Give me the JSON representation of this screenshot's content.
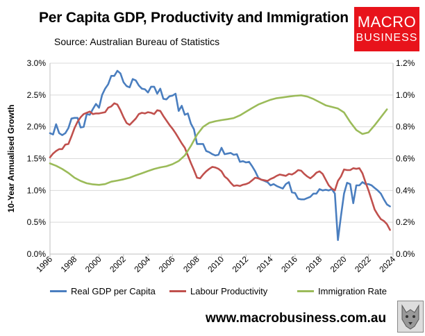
{
  "header": {
    "title": "Per Capita GDP, Productivity and Immigration",
    "subtitle": "Source: Australian Bureau of Statistics"
  },
  "logo": {
    "line1": "MACRO",
    "line2": "BUSINESS"
  },
  "footer": {
    "url": "www.macrobusiness.com.au"
  },
  "chart_data": {
    "type": "line",
    "title": "Per Capita GDP, Productivity and Immigration",
    "ylabel": "10-Year Annualised Growth",
    "xlim": [
      1996,
      2024
    ],
    "ylim_left": [
      0,
      3.0
    ],
    "ylim_right": [
      0,
      1.2
    ],
    "x_ticks": [
      "1996",
      "1998",
      "2000",
      "2002",
      "2004",
      "2006",
      "2008",
      "2010",
      "2012",
      "2014",
      "2016",
      "2018",
      "2020",
      "2022",
      "2024"
    ],
    "y_ticks_left": [
      "0.0%",
      "0.5%",
      "1.0%",
      "1.5%",
      "2.0%",
      "2.5%",
      "3.0%"
    ],
    "y_ticks_right": [
      "0.0%",
      "0.2%",
      "0.4%",
      "0.6%",
      "0.8%",
      "1.0%",
      "1.2%"
    ],
    "grid": true,
    "legend_position": "bottom",
    "series": [
      {
        "name": "Real GDP per Capita",
        "axis": "left",
        "color": "#4a7ebf",
        "points": [
          [
            1996,
            1.9
          ],
          [
            1996.25,
            1.88
          ],
          [
            1996.5,
            2.04
          ],
          [
            1996.75,
            1.9
          ],
          [
            1997,
            1.87
          ],
          [
            1997.25,
            1.9
          ],
          [
            1997.5,
            1.98
          ],
          [
            1997.75,
            2.13
          ],
          [
            1998,
            2.14
          ],
          [
            1998.25,
            2.14
          ],
          [
            1998.5,
            1.99
          ],
          [
            1998.75,
            2.0
          ],
          [
            1999,
            2.2
          ],
          [
            1999.25,
            2.19
          ],
          [
            1999.5,
            2.28
          ],
          [
            1999.75,
            2.36
          ],
          [
            2000,
            2.3
          ],
          [
            2000.25,
            2.5
          ],
          [
            2000.5,
            2.6
          ],
          [
            2000.75,
            2.67
          ],
          [
            2001,
            2.8
          ],
          [
            2001.25,
            2.8
          ],
          [
            2001.5,
            2.88
          ],
          [
            2001.75,
            2.84
          ],
          [
            2002,
            2.7
          ],
          [
            2002.25,
            2.64
          ],
          [
            2002.5,
            2.62
          ],
          [
            2002.75,
            2.75
          ],
          [
            2003,
            2.73
          ],
          [
            2003.25,
            2.65
          ],
          [
            2003.5,
            2.6
          ],
          [
            2003.75,
            2.59
          ],
          [
            2004,
            2.54
          ],
          [
            2004.25,
            2.63
          ],
          [
            2004.5,
            2.63
          ],
          [
            2004.75,
            2.52
          ],
          [
            2005,
            2.6
          ],
          [
            2005.25,
            2.44
          ],
          [
            2005.5,
            2.43
          ],
          [
            2005.75,
            2.48
          ],
          [
            2006,
            2.49
          ],
          [
            2006.25,
            2.52
          ],
          [
            2006.5,
            2.25
          ],
          [
            2006.75,
            2.33
          ],
          [
            2007,
            2.19
          ],
          [
            2007.25,
            2.21
          ],
          [
            2007.5,
            2.05
          ],
          [
            2007.75,
            1.96
          ],
          [
            2008,
            1.73
          ],
          [
            2008.25,
            1.73
          ],
          [
            2008.5,
            1.73
          ],
          [
            2008.75,
            1.62
          ],
          [
            2009,
            1.6
          ],
          [
            2009.25,
            1.57
          ],
          [
            2009.5,
            1.55
          ],
          [
            2009.75,
            1.56
          ],
          [
            2010,
            1.67
          ],
          [
            2010.25,
            1.57
          ],
          [
            2010.5,
            1.58
          ],
          [
            2010.75,
            1.59
          ],
          [
            2011,
            1.56
          ],
          [
            2011.25,
            1.57
          ],
          [
            2011.5,
            1.45
          ],
          [
            2011.75,
            1.46
          ],
          [
            2012,
            1.44
          ],
          [
            2012.25,
            1.45
          ],
          [
            2012.5,
            1.38
          ],
          [
            2012.75,
            1.3
          ],
          [
            2013,
            1.2
          ],
          [
            2013.25,
            1.17
          ],
          [
            2013.5,
            1.15
          ],
          [
            2013.75,
            1.13
          ],
          [
            2014,
            1.08
          ],
          [
            2014.25,
            1.1
          ],
          [
            2014.5,
            1.07
          ],
          [
            2014.75,
            1.05
          ],
          [
            2015,
            1.03
          ],
          [
            2015.25,
            1.1
          ],
          [
            2015.5,
            1.13
          ],
          [
            2015.75,
            0.97
          ],
          [
            2016,
            0.96
          ],
          [
            2016.25,
            0.87
          ],
          [
            2016.5,
            0.86
          ],
          [
            2016.75,
            0.86
          ],
          [
            2017,
            0.88
          ],
          [
            2017.25,
            0.9
          ],
          [
            2017.5,
            0.95
          ],
          [
            2017.75,
            0.95
          ],
          [
            2018,
            1.02
          ],
          [
            2018.25,
            1.0
          ],
          [
            2018.5,
            1.01
          ],
          [
            2018.75,
            1.0
          ],
          [
            2019,
            1.02
          ],
          [
            2019.25,
            0.95
          ],
          [
            2019.5,
            0.22
          ],
          [
            2019.75,
            0.6
          ],
          [
            2020,
            0.95
          ],
          [
            2020.25,
            1.12
          ],
          [
            2020.5,
            1.1
          ],
          [
            2020.75,
            0.8
          ],
          [
            2021,
            1.08
          ],
          [
            2021.25,
            1.08
          ],
          [
            2021.5,
            1.13
          ],
          [
            2021.75,
            1.1
          ],
          [
            2022,
            1.1
          ],
          [
            2022.25,
            1.08
          ],
          [
            2022.5,
            1.04
          ],
          [
            2022.75,
            1.0
          ],
          [
            2023,
            0.95
          ],
          [
            2023.25,
            0.86
          ],
          [
            2023.5,
            0.78
          ],
          [
            2023.75,
            0.75
          ]
        ]
      },
      {
        "name": "Labour Productivity",
        "axis": "left",
        "color": "#c0504d",
        "points": [
          [
            1996,
            1.52
          ],
          [
            1996.25,
            1.58
          ],
          [
            1996.5,
            1.62
          ],
          [
            1996.75,
            1.65
          ],
          [
            1997,
            1.65
          ],
          [
            1997.25,
            1.72
          ],
          [
            1997.5,
            1.73
          ],
          [
            1997.75,
            1.85
          ],
          [
            1998,
            1.98
          ],
          [
            1998.25,
            2.08
          ],
          [
            1998.5,
            2.15
          ],
          [
            1998.75,
            2.2
          ],
          [
            1999,
            2.22
          ],
          [
            1999.25,
            2.24
          ],
          [
            1999.5,
            2.2
          ],
          [
            1999.75,
            2.21
          ],
          [
            2000,
            2.21
          ],
          [
            2000.25,
            2.22
          ],
          [
            2000.5,
            2.23
          ],
          [
            2000.75,
            2.3
          ],
          [
            2001,
            2.32
          ],
          [
            2001.25,
            2.37
          ],
          [
            2001.5,
            2.35
          ],
          [
            2001.75,
            2.26
          ],
          [
            2002,
            2.15
          ],
          [
            2002.25,
            2.06
          ],
          [
            2002.5,
            2.03
          ],
          [
            2002.75,
            2.08
          ],
          [
            2003,
            2.13
          ],
          [
            2003.25,
            2.2
          ],
          [
            2003.5,
            2.22
          ],
          [
            2003.75,
            2.21
          ],
          [
            2004,
            2.23
          ],
          [
            2004.25,
            2.22
          ],
          [
            2004.5,
            2.2
          ],
          [
            2004.75,
            2.26
          ],
          [
            2005,
            2.25
          ],
          [
            2005.25,
            2.17
          ],
          [
            2005.5,
            2.1
          ],
          [
            2005.75,
            2.03
          ],
          [
            2006,
            1.97
          ],
          [
            2006.25,
            1.9
          ],
          [
            2006.5,
            1.82
          ],
          [
            2006.75,
            1.74
          ],
          [
            2007,
            1.67
          ],
          [
            2007.25,
            1.55
          ],
          [
            2007.5,
            1.43
          ],
          [
            2007.75,
            1.32
          ],
          [
            2008,
            1.2
          ],
          [
            2008.25,
            1.19
          ],
          [
            2008.5,
            1.25
          ],
          [
            2008.75,
            1.3
          ],
          [
            2009,
            1.34
          ],
          [
            2009.25,
            1.37
          ],
          [
            2009.5,
            1.36
          ],
          [
            2009.75,
            1.34
          ],
          [
            2010,
            1.3
          ],
          [
            2010.25,
            1.22
          ],
          [
            2010.5,
            1.18
          ],
          [
            2010.75,
            1.12
          ],
          [
            2011,
            1.07
          ],
          [
            2011.25,
            1.08
          ],
          [
            2011.5,
            1.07
          ],
          [
            2011.75,
            1.09
          ],
          [
            2012,
            1.1
          ],
          [
            2012.25,
            1.12
          ],
          [
            2012.5,
            1.16
          ],
          [
            2012.75,
            1.2
          ],
          [
            2013,
            1.19
          ],
          [
            2013.25,
            1.17
          ],
          [
            2013.5,
            1.16
          ],
          [
            2013.75,
            1.15
          ],
          [
            2014,
            1.18
          ],
          [
            2014.25,
            1.2
          ],
          [
            2014.5,
            1.23
          ],
          [
            2014.75,
            1.25
          ],
          [
            2015,
            1.24
          ],
          [
            2015.25,
            1.23
          ],
          [
            2015.5,
            1.26
          ],
          [
            2015.75,
            1.25
          ],
          [
            2016,
            1.28
          ],
          [
            2016.25,
            1.32
          ],
          [
            2016.5,
            1.31
          ],
          [
            2016.75,
            1.26
          ],
          [
            2017,
            1.22
          ],
          [
            2017.25,
            1.19
          ],
          [
            2017.5,
            1.23
          ],
          [
            2017.75,
            1.28
          ],
          [
            2018,
            1.3
          ],
          [
            2018.25,
            1.26
          ],
          [
            2018.5,
            1.17
          ],
          [
            2018.75,
            1.08
          ],
          [
            2019,
            1.03
          ],
          [
            2019.25,
            1.0
          ],
          [
            2019.5,
            1.15
          ],
          [
            2019.75,
            1.22
          ],
          [
            2020,
            1.33
          ],
          [
            2020.25,
            1.32
          ],
          [
            2020.5,
            1.32
          ],
          [
            2020.75,
            1.35
          ],
          [
            2021,
            1.34
          ],
          [
            2021.25,
            1.35
          ],
          [
            2021.5,
            1.27
          ],
          [
            2021.75,
            1.13
          ],
          [
            2022,
            1.0
          ],
          [
            2022.25,
            0.85
          ],
          [
            2022.5,
            0.7
          ],
          [
            2022.75,
            0.62
          ],
          [
            2023,
            0.55
          ],
          [
            2023.25,
            0.52
          ],
          [
            2023.5,
            0.47
          ],
          [
            2023.75,
            0.38
          ]
        ]
      },
      {
        "name": "Immigration Rate",
        "axis": "right",
        "color": "#9bbb59",
        "points": [
          [
            1996,
            0.57
          ],
          [
            1996.5,
            0.555
          ],
          [
            1997,
            0.535
          ],
          [
            1997.5,
            0.51
          ],
          [
            1998,
            0.48
          ],
          [
            1998.5,
            0.46
          ],
          [
            1999,
            0.445
          ],
          [
            1999.5,
            0.438
          ],
          [
            2000,
            0.435
          ],
          [
            2000.5,
            0.44
          ],
          [
            2001,
            0.455
          ],
          [
            2001.5,
            0.462
          ],
          [
            2002,
            0.47
          ],
          [
            2002.5,
            0.48
          ],
          [
            2003,
            0.495
          ],
          [
            2003.5,
            0.508
          ],
          [
            2004,
            0.522
          ],
          [
            2004.5,
            0.535
          ],
          [
            2005,
            0.545
          ],
          [
            2005.5,
            0.552
          ],
          [
            2006,
            0.565
          ],
          [
            2006.5,
            0.585
          ],
          [
            2007,
            0.62
          ],
          [
            2007.5,
            0.68
          ],
          [
            2008,
            0.75
          ],
          [
            2008.5,
            0.8
          ],
          [
            2009,
            0.825
          ],
          [
            2009.5,
            0.835
          ],
          [
            2010,
            0.842
          ],
          [
            2010.5,
            0.848
          ],
          [
            2011,
            0.855
          ],
          [
            2011.5,
            0.872
          ],
          [
            2012,
            0.895
          ],
          [
            2012.5,
            0.918
          ],
          [
            2013,
            0.94
          ],
          [
            2013.5,
            0.955
          ],
          [
            2014,
            0.97
          ],
          [
            2014.5,
            0.98
          ],
          [
            2015,
            0.985
          ],
          [
            2015.5,
            0.99
          ],
          [
            2016,
            0.995
          ],
          [
            2016.5,
            0.998
          ],
          [
            2017,
            0.99
          ],
          [
            2017.5,
            0.975
          ],
          [
            2018,
            0.955
          ],
          [
            2018.5,
            0.935
          ],
          [
            2019,
            0.925
          ],
          [
            2019.5,
            0.915
          ],
          [
            2020,
            0.89
          ],
          [
            2020.5,
            0.83
          ],
          [
            2021,
            0.78
          ],
          [
            2021.5,
            0.755
          ],
          [
            2022,
            0.765
          ],
          [
            2022.5,
            0.81
          ],
          [
            2023,
            0.86
          ],
          [
            2023.5,
            0.91
          ]
        ]
      }
    ]
  }
}
